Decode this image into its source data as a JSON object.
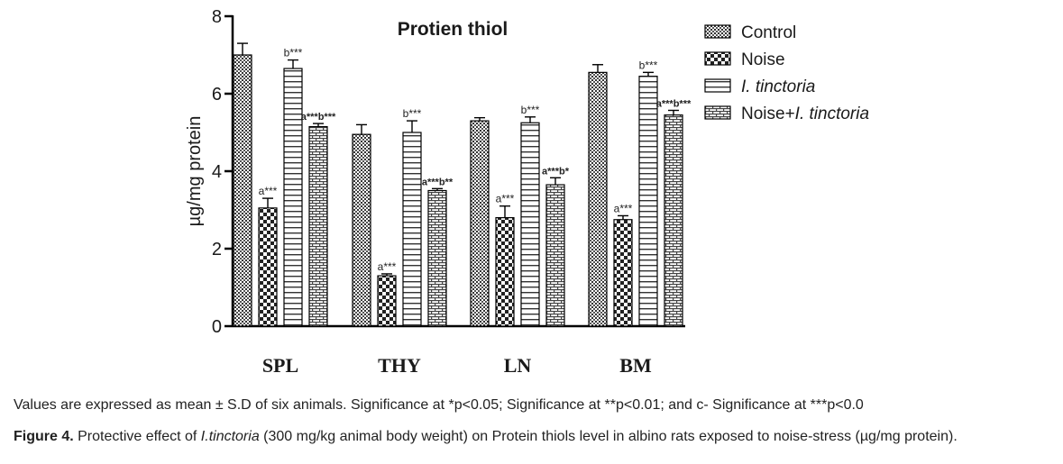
{
  "chart_data": {
    "type": "bar",
    "title": "Protien thiol",
    "ylabel": "µg/mg protein",
    "xlabel": "",
    "ylim": [
      0,
      8
    ],
    "yticks": [
      "0",
      "2",
      "4",
      "6",
      "8"
    ],
    "categories": [
      "SPL",
      "THY",
      "LN",
      "BM"
    ],
    "legend_position": "top-right",
    "series": [
      {
        "name": "Control",
        "legend": [
          "Control"
        ],
        "pattern": "dots",
        "values": [
          7.0,
          4.95,
          5.3,
          6.55
        ],
        "errors": [
          0.3,
          0.25,
          0.08,
          0.2
        ],
        "sig": [
          "",
          "",
          "",
          ""
        ]
      },
      {
        "name": "Noise",
        "legend": [
          "Noise"
        ],
        "pattern": "checker",
        "values": [
          3.05,
          1.3,
          2.8,
          2.75
        ],
        "errors": [
          0.25,
          0.05,
          0.3,
          0.1
        ],
        "sig": [
          "a***",
          "a***",
          "a***",
          "a***"
        ]
      },
      {
        "name": "I. tinctoria",
        "legend": [
          "I. tinctoria"
        ],
        "pattern": "hlines",
        "values": [
          6.65,
          5.0,
          5.25,
          6.45
        ],
        "errors": [
          0.22,
          0.3,
          0.15,
          0.1
        ],
        "sig": [
          "b***",
          "b***",
          "b***",
          "b***"
        ]
      },
      {
        "name": "Noise+I. tinctoria",
        "legend": [
          "Noise+",
          "I. tinctoria"
        ],
        "pattern": "brick",
        "values": [
          5.15,
          3.5,
          3.65,
          5.45
        ],
        "errors": [
          0.08,
          0.05,
          0.18,
          0.12
        ],
        "sig": [
          "a***b***",
          "a***b**",
          "a***b*",
          "a***b***"
        ]
      }
    ]
  },
  "caption": {
    "values_note": "Values are expressed as mean ± S.D of six animals. Significance at *p<0.05; Significance at **p<0.01; and c- Significance at ***p<0.0",
    "figure_label": "Figure 4.",
    "text_before": " Protective effect of ",
    "italic_term": "I.tinctoria",
    "text_after": " (300 mg/kg animal body weight) on Protein thiols level in albino rats exposed to noise-stress (µg/mg protein)."
  }
}
